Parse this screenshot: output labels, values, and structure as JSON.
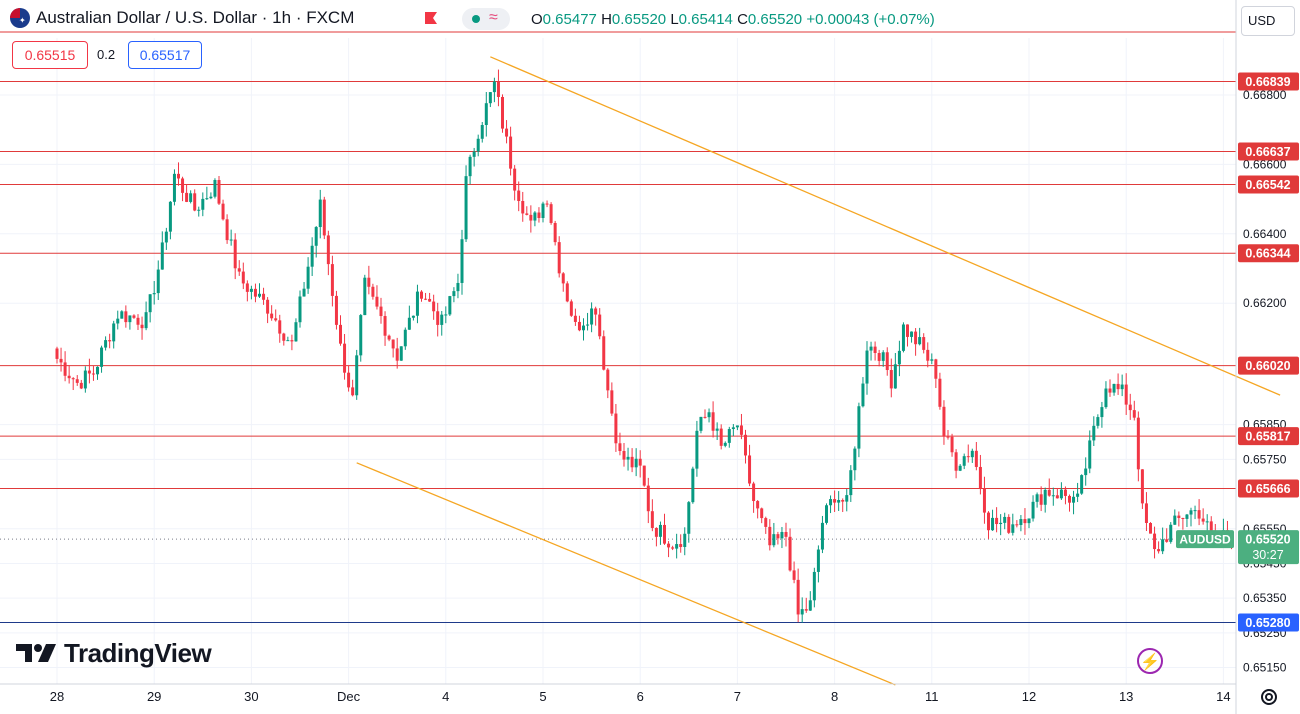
{
  "header": {
    "title": "Australian Dollar / U.S. Dollar · 1h · FXCM",
    "ohlc": {
      "open_label": "O",
      "open": "0.65477",
      "high_label": "H",
      "high": "0.65520",
      "low_label": "L",
      "low": "0.65414",
      "close_label": "C",
      "close": "0.65520",
      "change": "+0.00043 (+0.07%)"
    },
    "sell_price": "0.65515",
    "spread": "0.2",
    "buy_price": "0.65517"
  },
  "currency_button": "USD",
  "brand": "TradingView",
  "colors": {
    "up": "#089981",
    "down": "#f23645",
    "channel": "#f5a623",
    "level_line": "#e03a3a",
    "support_blue": "#2962ff",
    "grid": "#f0f3fa"
  },
  "chart_data": {
    "type": "candlestick",
    "symbol": "AUDUSD",
    "ylim": [
      0.651,
      0.6695
    ],
    "y_ticks": [
      "0.66800",
      "0.66600",
      "0.66400",
      "0.66200",
      "0.65850",
      "0.65750",
      "0.65550",
      "0.65450",
      "0.65350",
      "0.65250",
      "0.65150"
    ],
    "y_tick_values": [
      0.668,
      0.666,
      0.664,
      0.662,
      0.6585,
      0.6575,
      0.6555,
      0.6545,
      0.6535,
      0.6525,
      0.6515
    ],
    "x_ticks": [
      "28",
      "29",
      "30",
      "Dec",
      "4",
      "5",
      "6",
      "7",
      "8",
      "11",
      "12",
      "13",
      "14"
    ],
    "x_tick_index": [
      0,
      24,
      48,
      72,
      96,
      120,
      144,
      168,
      192,
      216,
      240,
      264,
      288
    ],
    "current_price": {
      "label": "AUDUSD",
      "value": "0.65520",
      "countdown": "30:27"
    },
    "horizontal_levels": [
      {
        "label": "0.66839",
        "value": 0.66839
      },
      {
        "label": "0.66637",
        "value": 0.66637
      },
      {
        "label": "0.66542",
        "value": 0.66542
      },
      {
        "label": "0.66344",
        "value": 0.66344
      },
      {
        "label": "0.66020",
        "value": 0.6602
      },
      {
        "label": "0.65817",
        "value": 0.65817
      },
      {
        "label": "0.65666",
        "value": 0.65666
      },
      {
        "label": "0.65280",
        "value": 0.6528,
        "color": "blue"
      }
    ],
    "channel_upper": [
      {
        "i": 107,
        "price": 0.6691
      },
      {
        "i": 302,
        "price": 0.65935
      }
    ],
    "channel_lower": [
      {
        "i": 74,
        "price": 0.6574
      },
      {
        "i": 207,
        "price": 0.651
      }
    ],
    "anchors": [
      {
        "i": 0,
        "price": 0.6604
      },
      {
        "i": 5,
        "price": 0.6597
      },
      {
        "i": 9,
        "price": 0.66
      },
      {
        "i": 15,
        "price": 0.6617
      },
      {
        "i": 22,
        "price": 0.6615
      },
      {
        "i": 26,
        "price": 0.6635
      },
      {
        "i": 29,
        "price": 0.6657
      },
      {
        "i": 34,
        "price": 0.6647
      },
      {
        "i": 39,
        "price": 0.6654
      },
      {
        "i": 45,
        "price": 0.6627
      },
      {
        "i": 52,
        "price": 0.6619
      },
      {
        "i": 58,
        "price": 0.6608
      },
      {
        "i": 65,
        "price": 0.6648
      },
      {
        "i": 70,
        "price": 0.6607
      },
      {
        "i": 73,
        "price": 0.6592
      },
      {
        "i": 76,
        "price": 0.6625
      },
      {
        "i": 80,
        "price": 0.6616
      },
      {
        "i": 84,
        "price": 0.6605
      },
      {
        "i": 90,
        "price": 0.6624
      },
      {
        "i": 95,
        "price": 0.6614
      },
      {
        "i": 99,
        "price": 0.6626
      },
      {
        "i": 101,
        "price": 0.6655
      },
      {
        "i": 104,
        "price": 0.667
      },
      {
        "i": 108,
        "price": 0.6683
      },
      {
        "i": 113,
        "price": 0.6655
      },
      {
        "i": 117,
        "price": 0.6642
      },
      {
        "i": 121,
        "price": 0.6651
      },
      {
        "i": 124,
        "price": 0.6631
      },
      {
        "i": 128,
        "price": 0.6613
      },
      {
        "i": 133,
        "price": 0.6619
      },
      {
        "i": 136,
        "price": 0.6595
      },
      {
        "i": 139,
        "price": 0.6576
      },
      {
        "i": 144,
        "price": 0.6572
      },
      {
        "i": 147,
        "price": 0.6556
      },
      {
        "i": 152,
        "price": 0.6551
      },
      {
        "i": 155,
        "price": 0.6553
      },
      {
        "i": 158,
        "price": 0.6583
      },
      {
        "i": 161,
        "price": 0.6589
      },
      {
        "i": 164,
        "price": 0.6578
      },
      {
        "i": 168,
        "price": 0.6585
      },
      {
        "i": 172,
        "price": 0.6563
      },
      {
        "i": 176,
        "price": 0.655
      },
      {
        "i": 180,
        "price": 0.6553
      },
      {
        "i": 183,
        "price": 0.653
      },
      {
        "i": 186,
        "price": 0.6533
      },
      {
        "i": 189,
        "price": 0.6557
      },
      {
        "i": 192,
        "price": 0.6565
      },
      {
        "i": 195,
        "price": 0.6562
      },
      {
        "i": 197,
        "price": 0.658
      },
      {
        "i": 200,
        "price": 0.6608
      },
      {
        "i": 203,
        "price": 0.6606
      },
      {
        "i": 206,
        "price": 0.6598
      },
      {
        "i": 209,
        "price": 0.6613
      },
      {
        "i": 213,
        "price": 0.6608
      },
      {
        "i": 217,
        "price": 0.66
      },
      {
        "i": 219,
        "price": 0.6582
      },
      {
        "i": 222,
        "price": 0.6574
      },
      {
        "i": 226,
        "price": 0.6578
      },
      {
        "i": 230,
        "price": 0.6557
      },
      {
        "i": 235,
        "price": 0.6556
      },
      {
        "i": 240,
        "price": 0.656
      },
      {
        "i": 244,
        "price": 0.6566
      },
      {
        "i": 248,
        "price": 0.6565
      },
      {
        "i": 252,
        "price": 0.6563
      },
      {
        "i": 256,
        "price": 0.6583
      },
      {
        "i": 259,
        "price": 0.6597
      },
      {
        "i": 263,
        "price": 0.6594
      },
      {
        "i": 266,
        "price": 0.6588
      },
      {
        "i": 268,
        "price": 0.656
      },
      {
        "i": 271,
        "price": 0.6548
      },
      {
        "i": 275,
        "price": 0.6555
      },
      {
        "i": 279,
        "price": 0.656
      },
      {
        "i": 282,
        "price": 0.656
      },
      {
        "i": 285,
        "price": 0.6553
      },
      {
        "i": 288,
        "price": 0.6554
      },
      {
        "i": 290,
        "price": 0.6552
      }
    ],
    "grid": true
  }
}
